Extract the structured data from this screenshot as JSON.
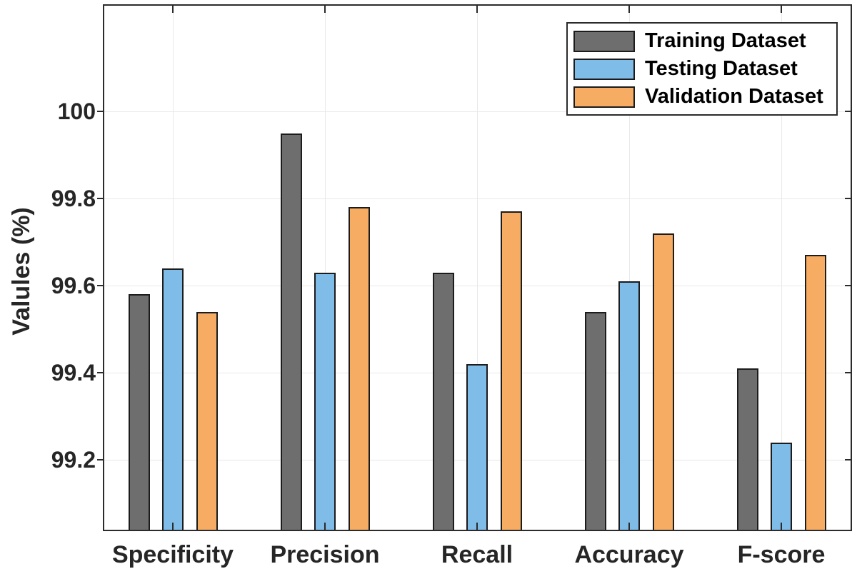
{
  "chart_data": {
    "type": "bar",
    "title": "",
    "xlabel": "",
    "ylabel": "Valules (%)",
    "categories": [
      "Specificity",
      "Precision",
      "Recall",
      "Accuracy",
      "F-score"
    ],
    "series": [
      {
        "name": "Training Dataset",
        "color": "#6e6e6e",
        "values": [
          99.58,
          99.95,
          99.63,
          99.54,
          99.41
        ]
      },
      {
        "name": "Testing Dataset",
        "color": "#7fbce8",
        "values": [
          99.64,
          99.63,
          99.42,
          99.61,
          99.24
        ]
      },
      {
        "name": "Validation Dataset",
        "color": "#f6ac63",
        "values": [
          99.54,
          99.78,
          99.77,
          99.72,
          99.67
        ]
      }
    ],
    "yticks": [
      100,
      99.8,
      99.6,
      99.4,
      99.2
    ],
    "ytick_labels": [
      "100",
      "99.8",
      "99.6",
      "99.4",
      "99.2"
    ],
    "ylim": [
      99.04,
      100.24
    ],
    "grid": true,
    "legend_position": "top-right",
    "colors": {
      "bar_edge": "#1c1c1c",
      "axis": "#2b2b2b",
      "grid": "#e9e9e9",
      "text": "#262626"
    }
  }
}
